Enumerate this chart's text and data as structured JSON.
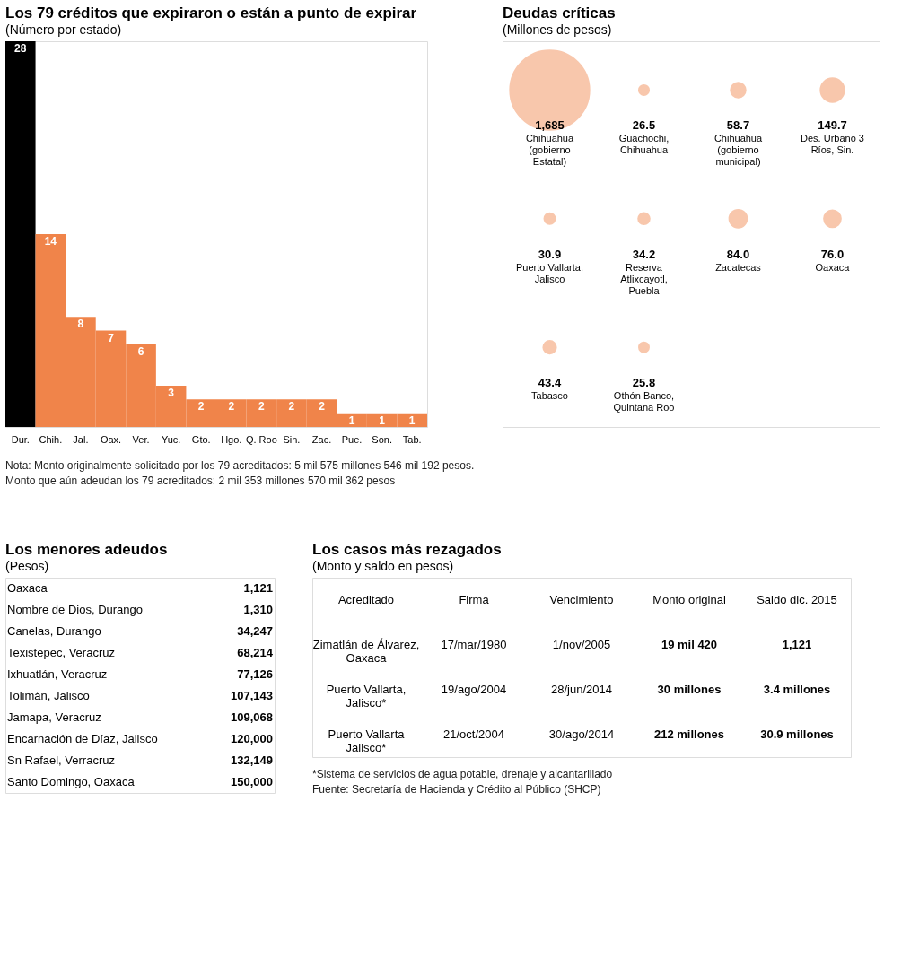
{
  "chart_data": [
    {
      "type": "bar",
      "title": "Los 79 créditos que expiraron o están a punto de expirar",
      "subtitle": "(Número por estado)",
      "categories": [
        "Dur.",
        "Chih.",
        "Jal.",
        "Oax.",
        "Ver.",
        "Yuc.",
        "Gto.",
        "Hgo.",
        "Q. Roo",
        "Sin.",
        "Zac.",
        "Pue.",
        "Son.",
        "Tab."
      ],
      "values": [
        28,
        14,
        8,
        7,
        6,
        3,
        2,
        2,
        2,
        2,
        2,
        1,
        1,
        1
      ],
      "colors": [
        "#000000",
        "#f0844a",
        "#f0844a",
        "#f0844a",
        "#f0844a",
        "#f0844a",
        "#f0844a",
        "#f0844a",
        "#f0844a",
        "#f0844a",
        "#f0844a",
        "#f0844a",
        "#f0844a",
        "#f0844a"
      ],
      "data_labels": true,
      "annotations": [
        "Nota: Monto originalmente solicitado por los 79 acreditados: 5 mil 575 millones 546 mil 192 pesos.",
        "Monto que aún adeudan los 79 acreditados: 2 mil 353 millones 570 mil 362 pesos"
      ]
    },
    {
      "type": "other",
      "title": "Deudas críticas",
      "subtitle": "(Millones de pesos)",
      "color": "#f0844a",
      "categories": [
        "Chihuahua (gobierno Estatal)",
        "Guachochi, Chihuahua",
        "Chihuahua (gobierno municipal)",
        "Des. Urbano 3 Ríos, Sin.",
        "Puerto Vallarta, Jalisco",
        "Reserva Atlixcayotl, Puebla",
        "Zacatecas",
        "Oaxaca",
        "Tabasco",
        "Othón Banco, Quintana Roo"
      ],
      "values": [
        1685,
        26.5,
        58.7,
        149.7,
        30.9,
        34.2,
        84.0,
        76.0,
        43.4,
        25.8
      ],
      "value_labels": [
        "1,685",
        "26.5",
        "58.7",
        "149.7",
        "30.9",
        "34.2",
        "84.0",
        "76.0",
        "43.4",
        "25.8"
      ]
    },
    {
      "type": "other",
      "title": "Los menores adeudos",
      "subtitle": "(Pesos)",
      "categories": [
        "Oaxaca",
        "Nombre de Dios, Durango",
        "Canelas, Durango",
        "Texistepec, Veracruz",
        "Ixhuatlán, Veracruz",
        "Tolimán, Jalisco",
        "Jamapa, Veracruz",
        "Encarnación de Díaz, Jalisco",
        "Sn Rafael, Verracruz",
        "Santo Domingo, Oaxaca"
      ],
      "values": [
        1121,
        1310,
        34247,
        68214,
        77126,
        107143,
        109068,
        120000,
        132149,
        150000
      ],
      "value_labels": [
        "1,121",
        "1,310",
        "34,247",
        "68,214",
        "77,126",
        "107,143",
        "109,068",
        "120,000",
        "132,149",
        "150,000"
      ]
    },
    {
      "type": "other",
      "title": "Los casos más rezagados",
      "subtitle": "(Monto y saldo en pesos)",
      "categories": [
        "Acreditado",
        "Firma",
        "Vencimiento",
        "Monto original",
        "Saldo dic. 2015"
      ],
      "cell_labels": [
        [
          "Zimatlán de Álvarez, Oaxaca",
          "17/mar/1980",
          "1/nov/2005",
          "19 mil 420",
          "1,121"
        ],
        [
          "Puerto Vallarta, Jalisco*",
          "19/ago/2004",
          "28/jun/2014",
          "30 millones",
          "3.4 millones"
        ],
        [
          "Puerto Vallarta Jalisco*",
          "21/oct/2004",
          "30/ago/2014",
          "212 millones",
          "30.9 millones"
        ]
      ],
      "annotations": [
        "*Sistema de servicios de agua potable, drenaje y alcantarillado",
        "Fuente: Secretaría de Hacienda y Crédito al Público (SHCP)"
      ]
    }
  ]
}
